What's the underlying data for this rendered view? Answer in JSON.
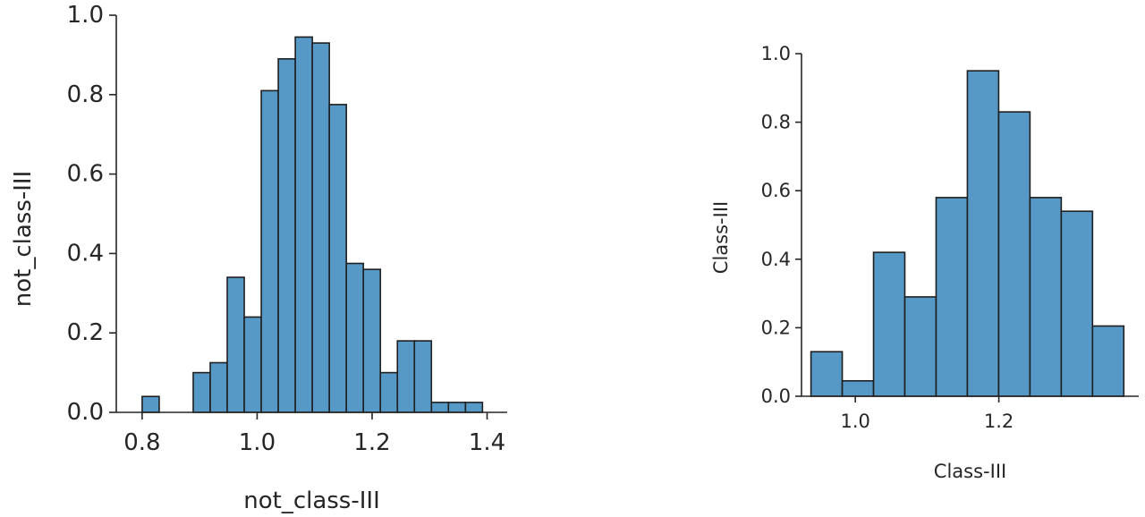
{
  "chart_data": [
    {
      "type": "bar",
      "xlabel": "not_class-III",
      "ylabel": "not_class-III",
      "xlim": [
        0.755,
        1.435
      ],
      "ylim": [
        0,
        1.0
      ],
      "xticks": [
        0.8,
        1.0,
        1.2,
        1.4
      ],
      "xtick_labels": [
        "0.8",
        "1.0",
        "1.2",
        "1.4"
      ],
      "yticks": [
        0,
        0.2,
        0.4,
        0.6,
        0.8,
        1.0
      ],
      "ytick_labels": [
        "0.0",
        "0.2",
        "0.4",
        "0.6",
        "0.8",
        "1.0"
      ],
      "bin_start": 0.8,
      "bin_width": 0.0296,
      "values": [
        0.04,
        0,
        0,
        0.1,
        0.125,
        0.34,
        0.24,
        0.81,
        0.89,
        0.945,
        0.93,
        0.775,
        0.375,
        0.36,
        0.1,
        0.18,
        0.18,
        0.025,
        0.025,
        0.025
      ],
      "grid": false,
      "bar_color": "#5698c6"
    },
    {
      "type": "bar",
      "xlabel": "Class-III",
      "ylabel": "Class-III",
      "xlim": [
        0.925,
        1.395
      ],
      "ylim": [
        0,
        1.0
      ],
      "xticks": [
        1.0,
        1.2
      ],
      "xtick_labels": [
        "1.0",
        "1.2"
      ],
      "yticks": [
        0,
        0.2,
        0.4,
        0.6,
        0.8,
        1.0
      ],
      "ytick_labels": [
        "0.0",
        "0.2",
        "0.4",
        "0.6",
        "0.8",
        "1.0"
      ],
      "bin_start": 0.9382,
      "bin_width": 0.0436,
      "values": [
        0.13,
        0.045,
        0.42,
        0.29,
        0.58,
        0.95,
        0.83,
        0.58,
        0.54,
        0.205
      ],
      "grid": false,
      "bar_color": "#5698c6"
    }
  ]
}
